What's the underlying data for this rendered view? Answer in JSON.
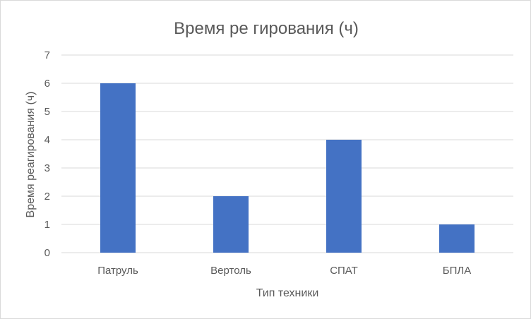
{
  "chart_data": {
    "type": "bar",
    "title": "Время ре гирования (ч)",
    "xlabel": "Тип техники",
    "ylabel": "Время реагирования (ч)",
    "categories": [
      "Патруль",
      "Вертоль",
      "СПАТ",
      "БПЛА"
    ],
    "values": [
      6,
      2,
      4,
      1
    ],
    "ylim": [
      0,
      7
    ],
    "yticks": [
      "0",
      "1",
      "2",
      "3",
      "4",
      "5",
      "6",
      "7"
    ],
    "grid": true,
    "legend": "none",
    "colors": {
      "bar": "#4472C4",
      "grid": "#d9d9d9",
      "text": "#595959"
    }
  }
}
